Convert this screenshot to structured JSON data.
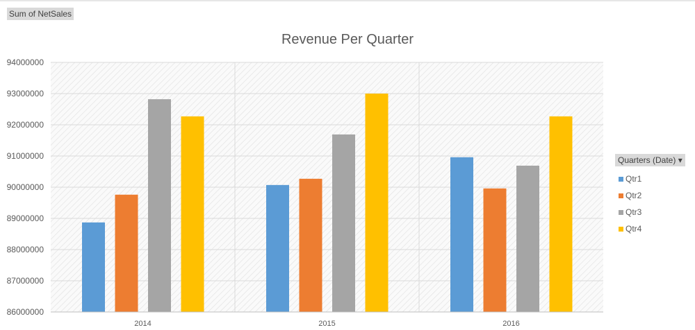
{
  "field_button": "Sum of NetSales",
  "chart_data": {
    "type": "bar",
    "title": "Revenue Per Quarter",
    "categories": [
      "2014",
      "2015",
      "2016"
    ],
    "ylim": [
      86000000,
      94000000
    ],
    "yticks": [
      "86000000",
      "87000000",
      "88000000",
      "89000000",
      "90000000",
      "91000000",
      "92000000",
      "93000000",
      "94000000"
    ],
    "grid": true,
    "legend_position": "right",
    "legend_title": "Quarters (Date)",
    "series": [
      {
        "name": "Qtr1",
        "color": "#5b9bd5",
        "values": [
          88870000,
          90070000,
          90960000
        ]
      },
      {
        "name": "Qtr2",
        "color": "#ed7d31",
        "values": [
          89760000,
          90270000,
          89960000
        ]
      },
      {
        "name": "Qtr3",
        "color": "#a5a5a5",
        "values": [
          92820000,
          91690000,
          90690000
        ]
      },
      {
        "name": "Qtr4",
        "color": "#ffc000",
        "values": [
          92270000,
          93000000,
          92270000
        ]
      }
    ]
  }
}
